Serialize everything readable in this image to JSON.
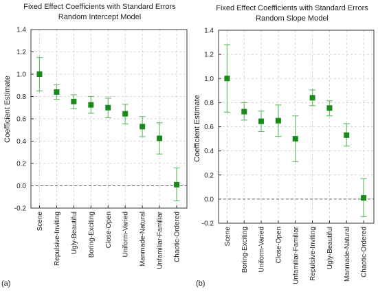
{
  "chart_data": [
    {
      "type": "scatter",
      "panel_label": "(a)",
      "title": "Fixed Effect Coefficients with Standard Errors",
      "subtitle": "Random Intercept Model",
      "xlabel": "",
      "ylabel": "Coefficient Estimate",
      "ylim": [
        -0.2,
        1.4
      ],
      "yticks": [
        "-0.2",
        "0.0",
        "0.2",
        "0.4",
        "0.6",
        "0.8",
        "1.0",
        "1.2",
        "1.4"
      ],
      "grid": true,
      "categories": [
        "Scene",
        "Repulsive-Inviting",
        "Ugly-Beautiful",
        "Boring-Exciting",
        "Close-Open",
        "Uniform-Varied",
        "Manmade-Natural",
        "Unfamiliar-Familiar",
        "Chaotic-Ordered"
      ],
      "values": [
        1.0,
        0.84,
        0.755,
        0.725,
        0.7,
        0.645,
        0.53,
        0.425,
        0.01
      ],
      "lower": [
        0.85,
        0.775,
        0.69,
        0.65,
        0.61,
        0.555,
        0.44,
        0.285,
        -0.135
      ],
      "upper": [
        1.15,
        0.905,
        0.815,
        0.8,
        0.785,
        0.73,
        0.62,
        0.565,
        0.16
      ],
      "marker_color": "#1a8a1a",
      "errorbar_color": "#6abf6a"
    },
    {
      "type": "scatter",
      "panel_label": "(b)",
      "title": "Fixed Effect Coefficients with Standard Errors",
      "subtitle": "Random Slope Model",
      "xlabel": "",
      "ylabel": "Coefficient Estimate",
      "ylim": [
        -0.2,
        1.4
      ],
      "yticks": [
        "-0.2",
        "0.0",
        "0.2",
        "0.4",
        "0.6",
        "0.8",
        "1.0",
        "1.2",
        "1.4"
      ],
      "grid": true,
      "categories": [
        "Scene",
        "Boring-Exciting",
        "Uniform-Varied",
        "Close-Open",
        "Unfamiliar-Familiar",
        "Repulsive-Inviting",
        "Ugly-Beautiful",
        "Manmade-Natural",
        "Chaotic-Ordered"
      ],
      "values": [
        1.0,
        0.725,
        0.645,
        0.65,
        0.5,
        0.84,
        0.755,
        0.53,
        0.01
      ],
      "lower": [
        0.72,
        0.655,
        0.56,
        0.52,
        0.31,
        0.775,
        0.69,
        0.44,
        -0.145
      ],
      "upper": [
        1.28,
        0.8,
        0.73,
        0.78,
        0.69,
        0.905,
        0.815,
        0.625,
        0.17
      ],
      "marker_color": "#1a8a1a",
      "errorbar_color": "#6abf6a"
    }
  ]
}
